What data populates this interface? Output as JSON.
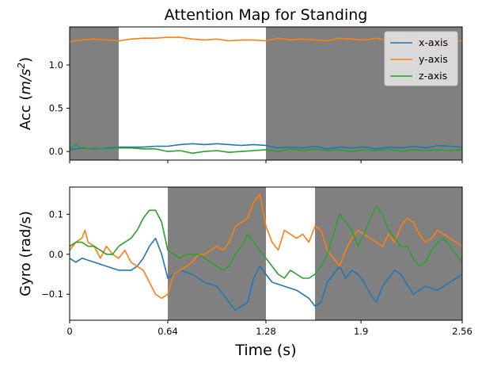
{
  "chart_data": {
    "title": "Attention Map for Standing",
    "xlabel": "Time (s)",
    "xlim": [
      0,
      2.56
    ],
    "xticks": [
      "0",
      "0.64",
      "1.28",
      "1.9",
      "2.56"
    ],
    "xtick_values": [
      0,
      0.64,
      1.28,
      1.9,
      2.56
    ],
    "highlight_color": "#808080",
    "series_colors": {
      "x": "#1f77b4",
      "y": "#ff7f0e",
      "z": "#2ca02c"
    },
    "panels": [
      {
        "id": "acc",
        "type": "line",
        "ylabel_prefix": "Acc (",
        "ylabel_unit_base": "m/s",
        "ylabel_unit_exp": "2",
        "ylabel_suffix": ")",
        "ylim": [
          -0.1,
          1.44
        ],
        "yticks": [
          "0.0",
          "0.5",
          "1.0"
        ],
        "ytick_values": [
          0.0,
          0.5,
          1.0
        ],
        "highlights": [
          [
            0,
            0.32
          ],
          [
            1.28,
            2.56
          ]
        ],
        "legend": {
          "position": "top-right",
          "entries": [
            "x-axis",
            "y-axis",
            "z-axis"
          ]
        },
        "series": [
          {
            "name": "x-axis",
            "key": "x",
            "x": [
              0,
              0.08,
              0.16,
              0.24,
              0.32,
              0.4,
              0.48,
              0.56,
              0.64,
              0.72,
              0.8,
              0.88,
              0.96,
              1.04,
              1.12,
              1.2,
              1.28,
              1.36,
              1.44,
              1.52,
              1.6,
              1.68,
              1.76,
              1.84,
              1.92,
              2.0,
              2.08,
              2.16,
              2.24,
              2.32,
              2.4,
              2.48,
              2.56
            ],
            "y": [
              0.02,
              0.04,
              0.03,
              0.04,
              0.05,
              0.05,
              0.05,
              0.06,
              0.06,
              0.08,
              0.09,
              0.08,
              0.09,
              0.08,
              0.07,
              0.08,
              0.07,
              0.04,
              0.05,
              0.04,
              0.06,
              0.03,
              0.05,
              0.04,
              0.05,
              0.03,
              0.05,
              0.04,
              0.06,
              0.04,
              0.07,
              0.06,
              0.05
            ]
          },
          {
            "name": "y-axis",
            "key": "y",
            "x": [
              0,
              0.08,
              0.16,
              0.24,
              0.32,
              0.4,
              0.48,
              0.56,
              0.64,
              0.72,
              0.8,
              0.88,
              0.96,
              1.04,
              1.12,
              1.2,
              1.28,
              1.36,
              1.44,
              1.52,
              1.6,
              1.68,
              1.76,
              1.84,
              1.92,
              2.0,
              2.08,
              2.16,
              2.24,
              2.32,
              2.4,
              2.48,
              2.56
            ],
            "y": [
              1.27,
              1.29,
              1.3,
              1.29,
              1.28,
              1.3,
              1.31,
              1.31,
              1.32,
              1.32,
              1.3,
              1.29,
              1.3,
              1.28,
              1.29,
              1.29,
              1.28,
              1.31,
              1.29,
              1.3,
              1.29,
              1.28,
              1.31,
              1.3,
              1.29,
              1.31,
              1.28,
              1.3,
              1.31,
              1.29,
              1.3,
              1.28,
              1.28
            ]
          },
          {
            "name": "z-axis",
            "key": "z",
            "x": [
              0,
              0.04,
              0.08,
              0.16,
              0.24,
              0.32,
              0.4,
              0.48,
              0.56,
              0.64,
              0.72,
              0.8,
              0.88,
              0.96,
              1.04,
              1.12,
              1.2,
              1.28,
              1.36,
              1.44,
              1.52,
              1.6,
              1.68,
              1.76,
              1.84,
              1.92,
              2.0,
              2.08,
              2.16,
              2.24,
              2.32,
              2.4,
              2.48,
              2.56
            ],
            "y": [
              0.02,
              0.09,
              0.03,
              0.04,
              0.03,
              0.04,
              0.04,
              0.03,
              0.03,
              0.0,
              0.01,
              -0.02,
              0.0,
              0.01,
              -0.01,
              0.0,
              0.01,
              0.02,
              0.0,
              0.03,
              0.01,
              0.03,
              0.01,
              0.02,
              0.0,
              0.02,
              0.01,
              0.03,
              0.0,
              0.02,
              0.01,
              0.02,
              0.01,
              0.02
            ]
          }
        ]
      },
      {
        "id": "gyro",
        "type": "line",
        "ylabel": "Gyro (rad/s)",
        "ylim": [
          -0.165,
          0.168
        ],
        "yticks": [
          "0.1",
          "0.0",
          "−0.1"
        ],
        "ytick_values": [
          0.1,
          0.0,
          -0.1
        ],
        "highlights": [
          [
            0.64,
            1.28
          ],
          [
            1.6,
            2.56
          ]
        ],
        "series": [
          {
            "name": "x-axis",
            "key": "x",
            "x": [
              0,
              0.04,
              0.08,
              0.16,
              0.24,
              0.32,
              0.4,
              0.44,
              0.48,
              0.52,
              0.56,
              0.6,
              0.64,
              0.68,
              0.72,
              0.8,
              0.88,
              0.96,
              1.0,
              1.04,
              1.08,
              1.12,
              1.16,
              1.2,
              1.24,
              1.28,
              1.32,
              1.4,
              1.48,
              1.56,
              1.6,
              1.64,
              1.68,
              1.72,
              1.76,
              1.8,
              1.84,
              1.88,
              1.92,
              1.96,
              2.0,
              2.04,
              2.08,
              2.12,
              2.16,
              2.24,
              2.32,
              2.4,
              2.48,
              2.56
            ],
            "y": [
              -0.01,
              -0.02,
              -0.01,
              -0.02,
              -0.03,
              -0.04,
              -0.04,
              -0.03,
              -0.01,
              0.02,
              0.04,
              0.0,
              -0.06,
              -0.05,
              -0.04,
              -0.05,
              -0.07,
              -0.08,
              -0.1,
              -0.12,
              -0.14,
              -0.13,
              -0.12,
              -0.06,
              -0.03,
              -0.05,
              -0.07,
              -0.08,
              -0.09,
              -0.11,
              -0.13,
              -0.12,
              -0.07,
              -0.05,
              -0.03,
              -0.06,
              -0.04,
              -0.05,
              -0.07,
              -0.1,
              -0.12,
              -0.08,
              -0.06,
              -0.04,
              -0.05,
              -0.1,
              -0.08,
              -0.09,
              -0.07,
              -0.05
            ]
          },
          {
            "name": "y-axis",
            "key": "y",
            "x": [
              0,
              0.04,
              0.08,
              0.1,
              0.12,
              0.16,
              0.2,
              0.24,
              0.28,
              0.32,
              0.36,
              0.4,
              0.44,
              0.48,
              0.52,
              0.56,
              0.6,
              0.64,
              0.68,
              0.72,
              0.76,
              0.8,
              0.84,
              0.88,
              0.92,
              0.96,
              1.0,
              1.04,
              1.08,
              1.12,
              1.16,
              1.2,
              1.24,
              1.28,
              1.32,
              1.36,
              1.4,
              1.44,
              1.48,
              1.52,
              1.56,
              1.6,
              1.64,
              1.68,
              1.72,
              1.76,
              1.8,
              1.84,
              1.88,
              1.92,
              1.96,
              2.0,
              2.04,
              2.08,
              2.12,
              2.16,
              2.2,
              2.24,
              2.28,
              2.32,
              2.36,
              2.4,
              2.44,
              2.48,
              2.52,
              2.56
            ],
            "y": [
              0.01,
              0.03,
              0.04,
              0.06,
              0.03,
              0.02,
              -0.01,
              0.02,
              0.0,
              -0.01,
              0.01,
              -0.02,
              -0.03,
              -0.04,
              -0.07,
              -0.1,
              -0.11,
              -0.1,
              -0.05,
              -0.04,
              -0.03,
              -0.02,
              0.0,
              0.0,
              0.01,
              0.02,
              0.01,
              0.03,
              0.07,
              0.08,
              0.09,
              0.13,
              0.15,
              0.07,
              0.03,
              0.01,
              0.06,
              0.05,
              0.04,
              0.05,
              0.03,
              0.07,
              0.06,
              0.01,
              -0.01,
              -0.03,
              0.01,
              0.04,
              0.06,
              0.05,
              0.04,
              0.03,
              0.02,
              0.05,
              0.03,
              0.07,
              0.09,
              0.08,
              0.05,
              0.03,
              0.04,
              0.06,
              0.05,
              0.04,
              0.03,
              0.02
            ]
          },
          {
            "name": "z-axis",
            "key": "z",
            "x": [
              0,
              0.04,
              0.08,
              0.12,
              0.16,
              0.2,
              0.24,
              0.28,
              0.32,
              0.36,
              0.4,
              0.44,
              0.48,
              0.52,
              0.56,
              0.6,
              0.64,
              0.68,
              0.72,
              0.76,
              0.8,
              0.84,
              0.88,
              0.92,
              0.96,
              1.0,
              1.04,
              1.08,
              1.12,
              1.16,
              1.2,
              1.24,
              1.28,
              1.32,
              1.36,
              1.4,
              1.44,
              1.48,
              1.52,
              1.56,
              1.6,
              1.64,
              1.68,
              1.72,
              1.76,
              1.8,
              1.84,
              1.88,
              1.92,
              1.96,
              2.0,
              2.04,
              2.08,
              2.12,
              2.16,
              2.2,
              2.24,
              2.28,
              2.32,
              2.36,
              2.4,
              2.44,
              2.48,
              2.52,
              2.56
            ],
            "y": [
              0.02,
              0.03,
              0.03,
              0.02,
              0.02,
              0.01,
              0.0,
              0.0,
              0.02,
              0.03,
              0.04,
              0.06,
              0.09,
              0.11,
              0.11,
              0.08,
              0.01,
              0.0,
              -0.01,
              0.0,
              0.0,
              0.0,
              -0.01,
              -0.02,
              -0.03,
              -0.04,
              -0.03,
              0.0,
              0.02,
              0.05,
              0.03,
              0.01,
              -0.01,
              -0.03,
              -0.05,
              -0.06,
              -0.04,
              -0.05,
              -0.06,
              -0.06,
              -0.05,
              -0.03,
              0.0,
              0.05,
              0.1,
              0.08,
              0.06,
              0.02,
              0.05,
              0.09,
              0.12,
              0.1,
              0.06,
              0.04,
              0.02,
              0.02,
              -0.01,
              -0.03,
              -0.02,
              0.01,
              0.03,
              0.04,
              0.02,
              0.0,
              -0.02
            ]
          }
        ]
      }
    ]
  }
}
